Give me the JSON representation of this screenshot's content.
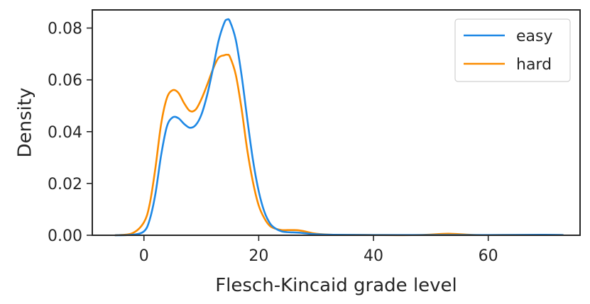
{
  "chart_data": {
    "type": "line",
    "title": "",
    "xlabel": "Flesch-Kincaid grade level",
    "ylabel": "Density",
    "xlim": [
      -9,
      76
    ],
    "ylim": [
      0,
      0.087
    ],
    "xticks": [
      0,
      20,
      40,
      60
    ],
    "yticks": [
      0.0,
      0.02,
      0.04,
      0.06,
      0.08
    ],
    "xtick_labels": [
      "0",
      "20",
      "40",
      "60"
    ],
    "ytick_labels": [
      "0.00",
      "0.02",
      "0.04",
      "0.06",
      "0.08"
    ],
    "grid": false,
    "legend_position": "top-right",
    "series": [
      {
        "name": "easy",
        "color": "#1e88e5",
        "x": [
          -5,
          -2,
          0,
          1,
          2,
          3,
          4,
          5,
          6,
          7,
          8,
          9,
          10,
          11,
          12,
          13,
          14,
          14.5,
          15,
          16,
          17,
          18,
          19,
          20,
          21,
          22,
          23,
          24,
          25,
          26,
          27,
          28,
          30,
          33,
          40,
          50,
          60,
          70,
          73
        ],
        "y": [
          0.0,
          0.0002,
          0.0015,
          0.006,
          0.016,
          0.031,
          0.042,
          0.0455,
          0.0452,
          0.043,
          0.0415,
          0.0425,
          0.0465,
          0.054,
          0.064,
          0.075,
          0.082,
          0.0833,
          0.0825,
          0.0755,
          0.062,
          0.045,
          0.029,
          0.017,
          0.009,
          0.0045,
          0.0025,
          0.0015,
          0.0012,
          0.0011,
          0.001,
          0.0008,
          0.0004,
          0.0002,
          0.0001,
          0.0001,
          0.0001,
          0.0002,
          0.0001
        ]
      },
      {
        "name": "hard",
        "color": "#fb8c00",
        "x": [
          -5,
          -2,
          0,
          1,
          2,
          3,
          4,
          5,
          6,
          7,
          8,
          9,
          10,
          11,
          12,
          13,
          14,
          14.5,
          15,
          16,
          17,
          18,
          19,
          20,
          21,
          22,
          23,
          24,
          25,
          26,
          27,
          28,
          30,
          33,
          40,
          48,
          53,
          58,
          65,
          73
        ],
        "y": [
          0.0,
          0.0008,
          0.005,
          0.012,
          0.026,
          0.043,
          0.053,
          0.056,
          0.055,
          0.051,
          0.048,
          0.0485,
          0.0525,
          0.058,
          0.064,
          0.0685,
          0.0695,
          0.0697,
          0.0688,
          0.062,
          0.049,
          0.033,
          0.0205,
          0.0115,
          0.0065,
          0.0035,
          0.0025,
          0.002,
          0.002,
          0.002,
          0.0019,
          0.0015,
          0.0006,
          0.0002,
          0.0001,
          0.0001,
          0.0006,
          0.0001,
          0.0001,
          0.0001
        ]
      }
    ]
  }
}
